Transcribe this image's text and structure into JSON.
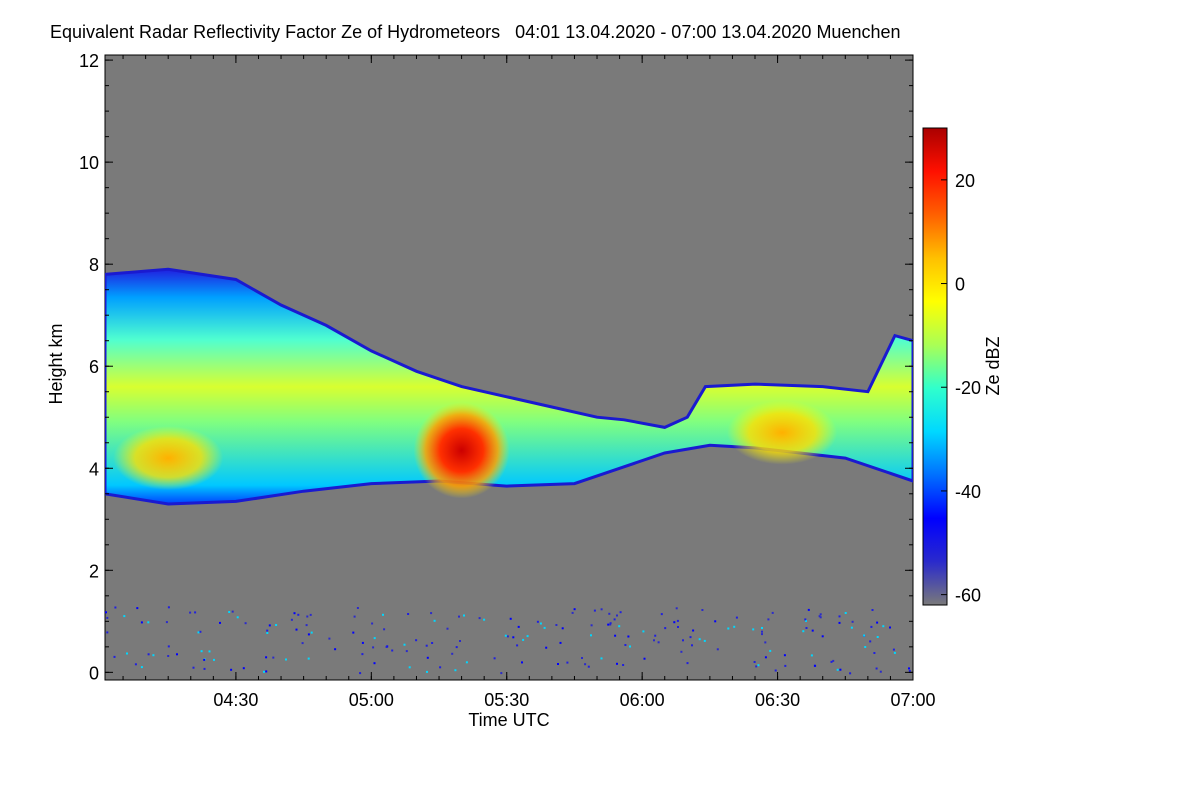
{
  "chart_data": {
    "type": "heatmap",
    "title": "Equivalent Radar Reflectivity Factor Ze of Hydrometeors   04:01 13.04.2020 - 07:00 13.04.2020 Muenchen",
    "xlabel": "Time UTC",
    "ylabel": "Height km",
    "x_ticks": [
      "04:30",
      "05:00",
      "05:30",
      "06:00",
      "06:30",
      "07:00"
    ],
    "x_tick_minutes": [
      270,
      300,
      330,
      360,
      390,
      420
    ],
    "xlim_minutes": [
      241,
      420
    ],
    "y_ticks": [
      "0",
      "2",
      "4",
      "6",
      "8",
      "10",
      "12"
    ],
    "y_tick_values": [
      0,
      2,
      4,
      6,
      8,
      10,
      12
    ],
    "ylim": [
      -0.15,
      12.1
    ],
    "colorbar": {
      "label": "Ze dBZ",
      "ticks": [
        "20",
        "0",
        "-20",
        "-40",
        "-60"
      ],
      "tick_values": [
        20,
        0,
        -20,
        -40,
        -60
      ],
      "range": [
        -62,
        30
      ],
      "colors": [
        "#7a7a7a",
        "#2a2acc",
        "#0000ff",
        "#0070ff",
        "#00d8ff",
        "#30ffcc",
        "#aaff55",
        "#ffff00",
        "#ffc000",
        "#ff6000",
        "#ff1000",
        "#aa0000"
      ]
    },
    "cloud_layer": {
      "description_units": "km vs minutes",
      "top_km": [
        [
          241,
          7.8
        ],
        [
          255,
          7.9
        ],
        [
          270,
          7.7
        ],
        [
          280,
          7.2
        ],
        [
          290,
          6.8
        ],
        [
          300,
          6.3
        ],
        [
          310,
          5.9
        ],
        [
          320,
          5.6
        ],
        [
          330,
          5.4
        ],
        [
          340,
          5.2
        ],
        [
          350,
          5.0
        ],
        [
          356,
          4.95
        ],
        [
          365,
          4.8
        ],
        [
          370,
          5.0
        ],
        [
          374,
          5.6
        ],
        [
          385,
          5.65
        ],
        [
          400,
          5.6
        ],
        [
          410,
          5.5
        ],
        [
          416,
          6.6
        ],
        [
          420,
          6.5
        ]
      ],
      "base_km": [
        [
          241,
          3.5
        ],
        [
          255,
          3.3
        ],
        [
          270,
          3.35
        ],
        [
          285,
          3.55
        ],
        [
          300,
          3.7
        ],
        [
          315,
          3.75
        ],
        [
          330,
          3.65
        ],
        [
          345,
          3.7
        ],
        [
          355,
          4.0
        ],
        [
          365,
          4.3
        ],
        [
          375,
          4.45
        ],
        [
          385,
          4.4
        ],
        [
          395,
          4.3
        ],
        [
          405,
          4.2
        ],
        [
          420,
          3.75
        ]
      ],
      "cores": [
        {
          "minute": 320,
          "km": 4.35,
          "dbz": 25
        },
        {
          "minute": 255,
          "km": 4.2,
          "dbz": 5
        },
        {
          "minute": 391,
          "km": 4.7,
          "dbz": 5
        }
      ]
    }
  },
  "colors": {
    "background": "#ffffff",
    "plot_fill": "#7a7a7a",
    "axis": "#000000"
  }
}
